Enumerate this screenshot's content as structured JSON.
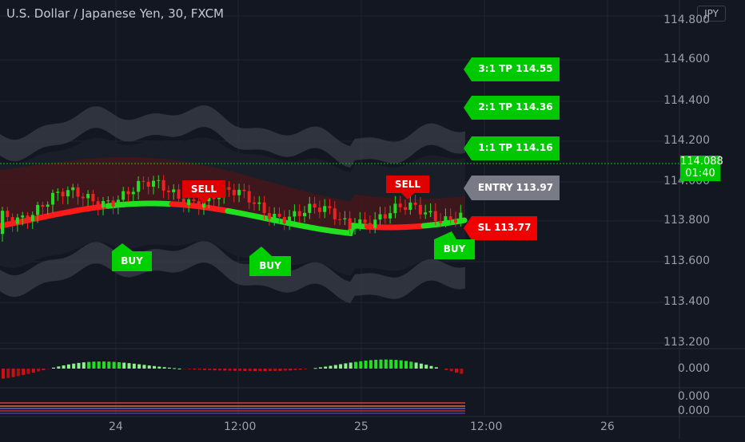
{
  "header": {
    "title": "U.S. Dollar / Japanese Yen, 30, FXCM",
    "currency_button": "JPY"
  },
  "price_axis": {
    "labels": [
      "114.800",
      "114.600",
      "114.400",
      "114.200",
      "114.000",
      "113.800",
      "113.600",
      "113.400",
      "113.200"
    ],
    "current_price": "114.088",
    "countdown": "01:40"
  },
  "indicator_axis": {
    "osc_value": "0.000",
    "sub1_value": "0.000",
    "sub2_value": "0.000"
  },
  "time_axis": {
    "labels": [
      "24",
      "12:00",
      "25",
      "12:00",
      "26"
    ]
  },
  "targets": [
    {
      "label": "3:1 TP 114.55",
      "color": "#00c800"
    },
    {
      "label": "2:1 TP 114.36",
      "color": "#00c800"
    },
    {
      "label": "1:1 TP 114.16",
      "color": "#00c800"
    },
    {
      "label": "ENTRY 113.97",
      "color": "#787b86"
    },
    {
      "label": "SL 113.77",
      "color": "#f00000"
    }
  ],
  "signals": [
    {
      "label": "BUY",
      "type": "buy"
    },
    {
      "label": "SELL",
      "type": "sell"
    },
    {
      "label": "BUY",
      "type": "buy"
    },
    {
      "label": "SELL",
      "type": "sell"
    },
    {
      "label": "BUY",
      "type": "buy"
    }
  ],
  "colors": {
    "buy": "#00d000",
    "sell": "#e00000",
    "background": "#131722",
    "grid": "#262a36"
  }
}
